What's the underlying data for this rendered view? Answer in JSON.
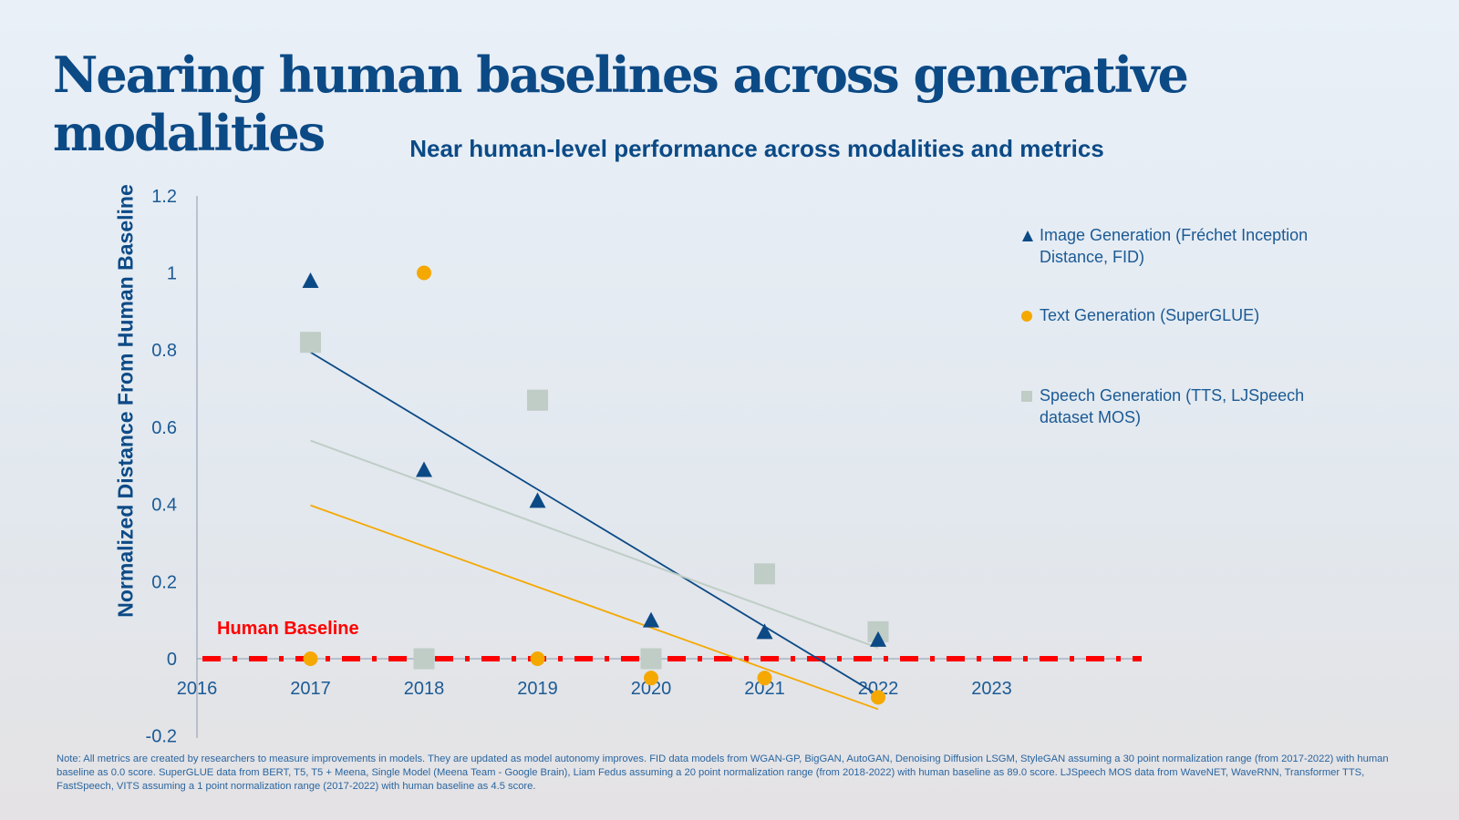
{
  "title": "Nearing human baselines across generative modalities",
  "chart_data": {
    "type": "scatter",
    "title": "Near human-level performance across modalities and metrics",
    "xlabel": "",
    "ylabel": "Normalized Distance From Human Baseline",
    "xlim": [
      2016,
      2024
    ],
    "ylim": [
      -0.2,
      1.2
    ],
    "x_ticks": [
      "2016",
      "2017",
      "2018",
      "2019",
      "2020",
      "2021",
      "2022",
      "2023"
    ],
    "y_ticks": [
      "1.2",
      "1",
      "0.8",
      "0.6",
      "0.4",
      "0.2",
      "0",
      "-0.2"
    ],
    "legend_position": "right",
    "baseline": {
      "label": "Human Baseline",
      "value": 0,
      "color": "#ff0000",
      "style": "dash-dot"
    },
    "trendlines": "linear",
    "series": [
      {
        "name": "Image Generation (Fréchet Inception Distance, FID)",
        "marker": "triangle",
        "color": "#0c4a86",
        "x": [
          2017,
          2018,
          2019,
          2020,
          2021,
          2022
        ],
        "y": [
          0.98,
          0.49,
          0.41,
          0.1,
          0.07,
          0.05
        ]
      },
      {
        "name": "Text Generation (SuperGLUE)",
        "marker": "circle",
        "color": "#f5a800",
        "x": [
          2017,
          2018,
          2019,
          2020,
          2021,
          2022
        ],
        "y": [
          0.0,
          1.0,
          0.0,
          -0.05,
          -0.05,
          -0.1
        ]
      },
      {
        "name": "Speech Generation (TTS, LJSpeech dataset MOS)",
        "marker": "square",
        "color": "#bfcdc6",
        "x": [
          2017,
          2018,
          2019,
          2020,
          2021,
          2022
        ],
        "y": [
          0.82,
          0.0,
          0.67,
          0.0,
          0.22,
          0.07
        ]
      }
    ]
  },
  "note": "Note: All metrics are created by researchers to measure improvements in models. They are updated as model autonomy improves. FID data models from WGAN-GP, BigGAN, AutoGAN, Denoising Diffusion LSGM, StyleGAN assuming a 30 point normalization range (from 2017-2022) with human baseline as 0.0 score. SuperGLUE data from BERT, T5, T5 + Meena, Single Model (Meena Team - Google Brain), Liam Fedus assuming a 20 point normalization range (from 2018-2022) with human baseline as 89.0 score. LJSpeech MOS data from WaveNET, WaveRNN, Transformer TTS, FastSpeech, VITS assuming a 1 point normalization range (2017-2022) with human baseline as 4.5 score."
}
